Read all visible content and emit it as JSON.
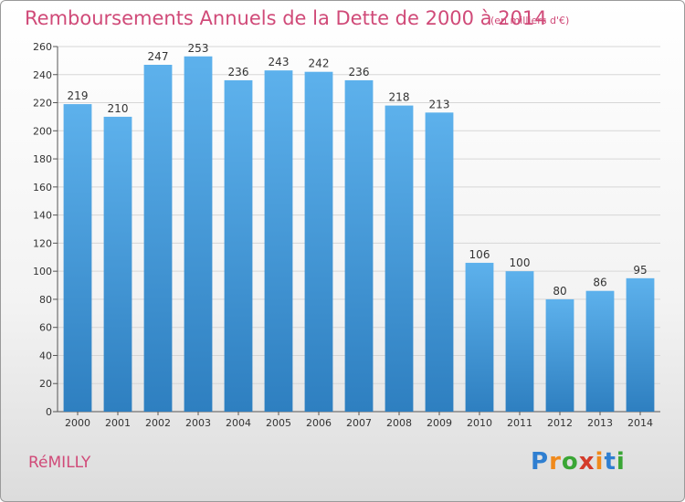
{
  "title": "Remboursements Annuels de la Dette de 2000 à 2014",
  "subtitle": "(en milliers d'€)",
  "commune": "RéMILLY",
  "logo": {
    "letters": [
      "P",
      "r",
      "o",
      "x",
      "i",
      "t",
      "i"
    ],
    "colors": [
      "#2f7fd1",
      "#f08a1c",
      "#3aa635",
      "#d43b2a",
      "#f08a1c",
      "#2f7fd1",
      "#3aa635"
    ]
  },
  "colors": {
    "bar_light": "#5db1ec",
    "bar_dark": "#2e7fc0",
    "accent": "#d04a78"
  },
  "chart_data": {
    "type": "bar",
    "title": "Remboursements Annuels de la Dette de 2000 à 2014",
    "subtitle": "(en milliers d'€)",
    "xlabel": "",
    "ylabel": "",
    "categories": [
      "2000",
      "2001",
      "2002",
      "2003",
      "2004",
      "2005",
      "2006",
      "2007",
      "2008",
      "2009",
      "2010",
      "2011",
      "2012",
      "2013",
      "2014"
    ],
    "values": [
      219,
      210,
      247,
      253,
      236,
      243,
      242,
      236,
      218,
      213,
      106,
      100,
      80,
      86,
      95
    ],
    "ylim": [
      0,
      260
    ],
    "yticks": [
      0,
      20,
      40,
      60,
      80,
      100,
      120,
      140,
      160,
      180,
      200,
      220,
      240,
      260
    ],
    "grid": true,
    "legend": "none"
  }
}
